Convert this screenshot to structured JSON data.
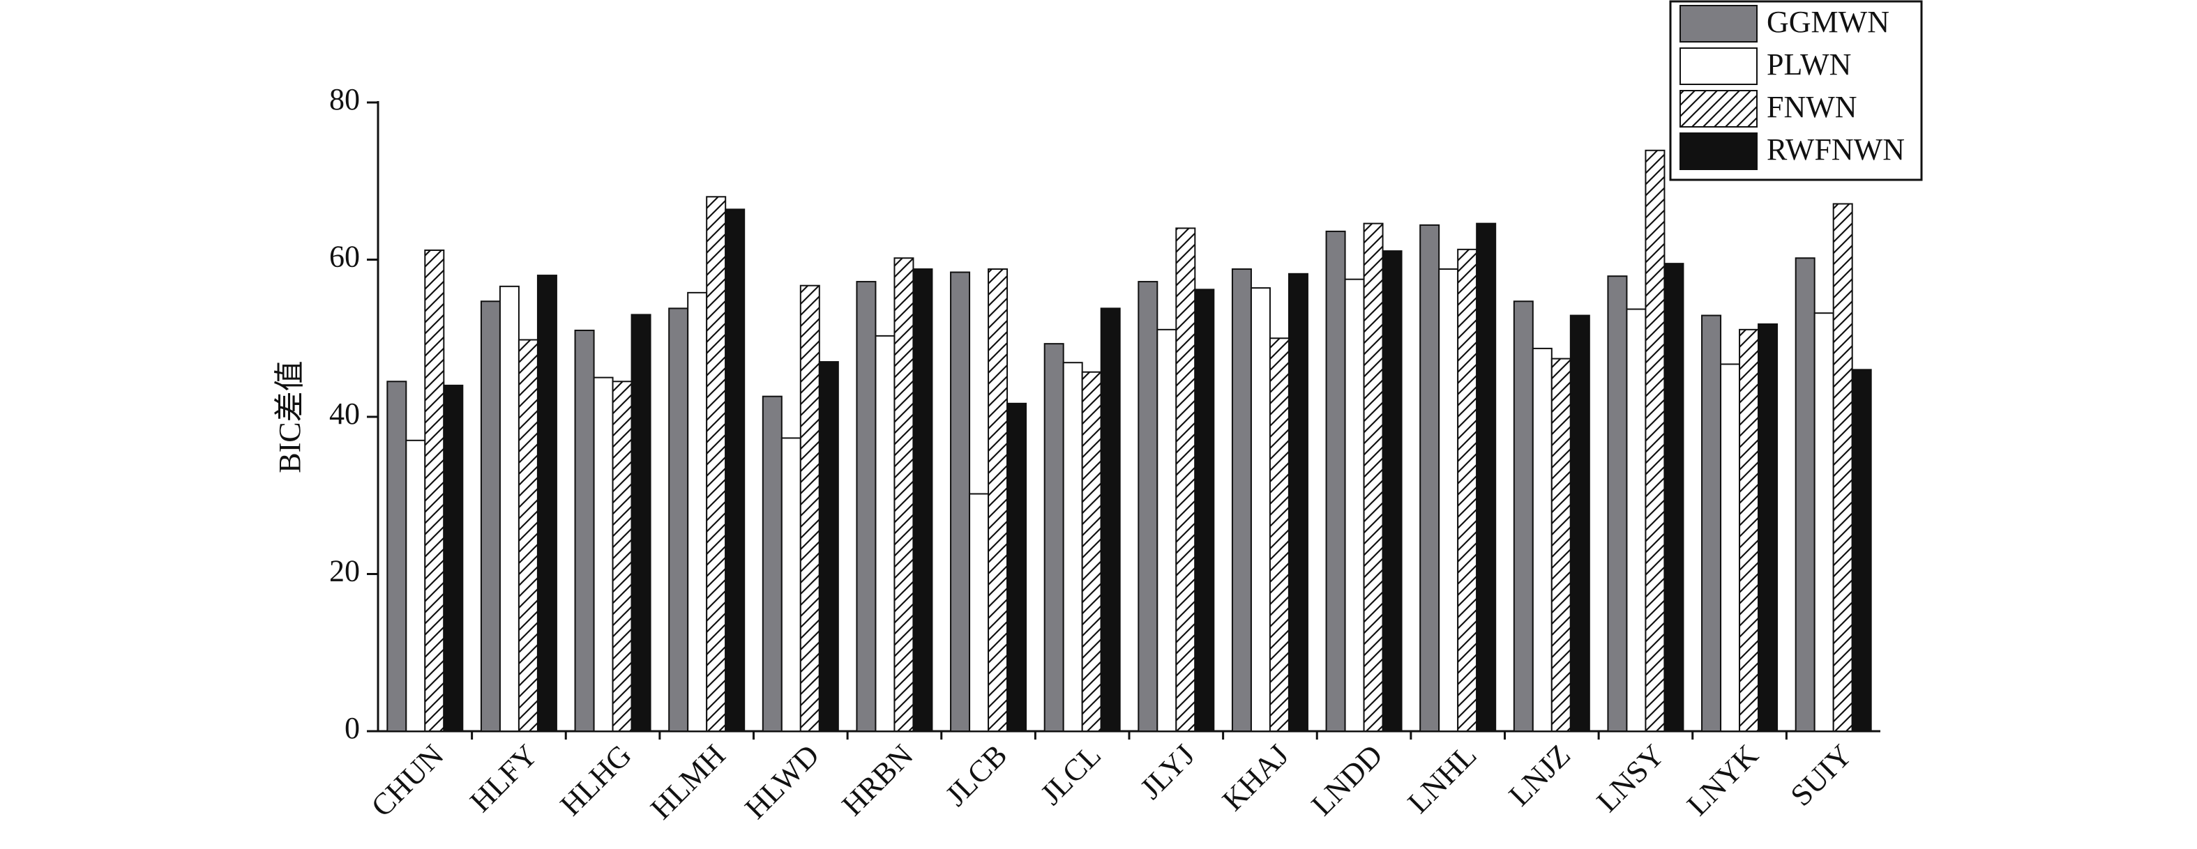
{
  "chart_data": {
    "type": "bar",
    "y_label": "BIC差值",
    "categories": [
      "CHUN",
      "HLFY",
      "HLHG",
      "HLMH",
      "HLWD",
      "HRBN",
      "JLCB",
      "JLCL",
      "JLYJ",
      "KHAJ",
      "LNDD",
      "LNHL",
      "LNJZ",
      "LNSY",
      "LNYK",
      "SUIY"
    ],
    "series": [
      {
        "name": "GGMWN",
        "color": "#7d7d82",
        "values": [
          44.5,
          54.7,
          51,
          53.8,
          42.6,
          57.2,
          58.4,
          49.3,
          57.2,
          58.8,
          63.6,
          64.4,
          54.7,
          57.9,
          52.9,
          60.2
        ]
      },
      {
        "name": "PLWN",
        "color": "#ffffff",
        "values": [
          37,
          56.6,
          45,
          55.8,
          37.3,
          50.3,
          30.2,
          46.9,
          51.1,
          56.4,
          57.5,
          58.8,
          48.7,
          53.7,
          46.7,
          53.2
        ]
      },
      {
        "name": "FNWN",
        "color": "#ffffff",
        "hatch": true,
        "values": [
          61.2,
          49.8,
          44.5,
          68,
          56.7,
          60.2,
          58.8,
          45.7,
          64,
          50,
          64.6,
          61.3,
          47.4,
          73.9,
          51.1,
          67.1
        ]
      },
      {
        "name": "RWFNWN",
        "color": "#111111",
        "values": [
          44,
          58,
          53,
          66.4,
          47,
          58.8,
          41.7,
          53.8,
          56.2,
          58.2,
          61.1,
          64.6,
          52.9,
          59.5,
          51.8,
          46
        ]
      }
    ],
    "ylim": [
      0,
      80
    ],
    "yticks": [
      0,
      20,
      40,
      60,
      80
    ],
    "grid": false,
    "legend": "upper right"
  }
}
